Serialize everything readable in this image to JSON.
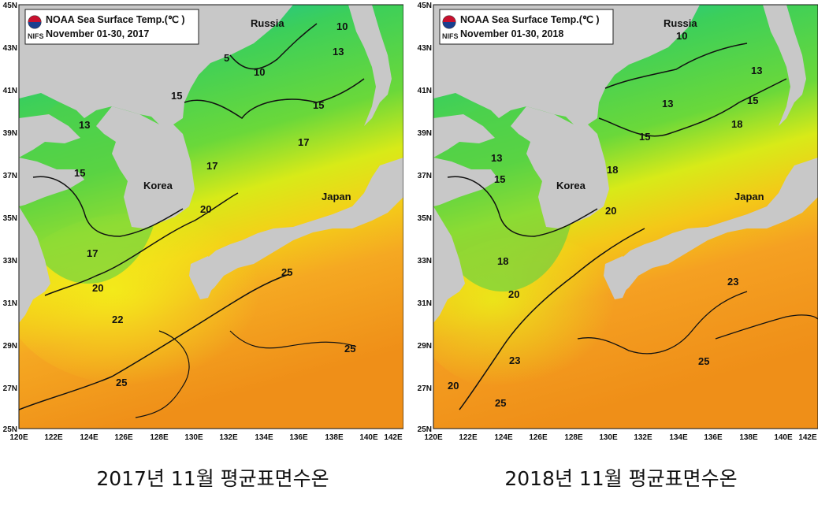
{
  "maps": [
    {
      "title": "NOAA Sea Surface Temp.(℃ )",
      "period": "November 01-30, 2017",
      "logo_text": "NIFS",
      "caption": "2017년 11월 평균표면수온",
      "labels": {
        "russia": "Russia",
        "korea": "Korea",
        "japan": "Japan"
      },
      "contours": [
        "5",
        "10",
        "10",
        "13",
        "15",
        "15",
        "13",
        "15",
        "17",
        "17",
        "17",
        "20",
        "20",
        "22",
        "25",
        "25",
        "25"
      ]
    },
    {
      "title": "NOAA Sea Surface Temp.(℃ )",
      "period": "November 01-30, 2018",
      "logo_text": "NIFS",
      "caption": "2018년 11월 평균표면수온",
      "labels": {
        "russia": "Russia",
        "korea": "Korea",
        "japan": "Japan"
      },
      "contours": [
        "10",
        "13",
        "15",
        "13",
        "18",
        "15",
        "13",
        "15",
        "18",
        "20",
        "18",
        "20",
        "23",
        "23",
        "25",
        "25",
        "20"
      ]
    }
  ],
  "lat_ticks": [
    "45N",
    "43N",
    "41N",
    "39N",
    "37N",
    "35N",
    "33N",
    "31N",
    "29N",
    "27N",
    "25N"
  ],
  "lon_ticks": [
    "120E",
    "122E",
    "124E",
    "126E",
    "128E",
    "130E",
    "132E",
    "134E",
    "136E",
    "138E",
    "140E",
    "142E"
  ],
  "colors": {
    "land": "#c8c8c8",
    "cold": "#2a7fd4",
    "cool": "#17c2a0",
    "mid": "#44d044",
    "warm_mid": "#a8e040",
    "warm": "#f0ea10",
    "hot": "#f5a020",
    "hottest": "#ef8f18"
  }
}
